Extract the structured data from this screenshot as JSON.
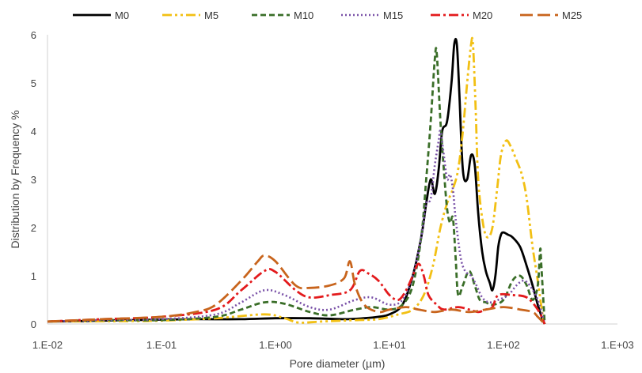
{
  "chart_data": {
    "type": "line",
    "title": "",
    "xlabel": "Pore diameter (µm)",
    "ylabel": "Distribution by Frequency %",
    "x_scale": "log",
    "xlim": [
      0.01,
      1000
    ],
    "ylim": [
      0,
      6
    ],
    "x_ticks": [
      0.01,
      0.1,
      1,
      10,
      100,
      1000
    ],
    "x_tick_labels": [
      "1.E-02",
      "1.E-01",
      "1.E+00",
      "1.E+01",
      "1.E+02",
      "1.E+03"
    ],
    "y_ticks": [
      0,
      1,
      2,
      3,
      4,
      5,
      6
    ],
    "y_tick_labels": [
      "0",
      "1",
      "2",
      "3",
      "4",
      "5",
      "6"
    ],
    "grid": false,
    "legend_position": "top",
    "series": [
      {
        "name": "M0",
        "color": "#000000",
        "dash": "solid",
        "width": 2.8,
        "points": [
          [
            0.01,
            0.05
          ],
          [
            0.02,
            0.06
          ],
          [
            0.05,
            0.08
          ],
          [
            0.1,
            0.09
          ],
          [
            0.2,
            0.1
          ],
          [
            0.5,
            0.1
          ],
          [
            1,
            0.12
          ],
          [
            2,
            0.12
          ],
          [
            4,
            0.1
          ],
          [
            6,
            0.12
          ],
          [
            8,
            0.15
          ],
          [
            10,
            0.2
          ],
          [
            13,
            0.4
          ],
          [
            16,
            1
          ],
          [
            19,
            1.8
          ],
          [
            21,
            2.5
          ],
          [
            23,
            3
          ],
          [
            25,
            2.7
          ],
          [
            27,
            3.2
          ],
          [
            29,
            4
          ],
          [
            32,
            4.2
          ],
          [
            35,
            5
          ],
          [
            37,
            5.8
          ],
          [
            39,
            5.8
          ],
          [
            41,
            4.8
          ],
          [
            44,
            3.2
          ],
          [
            48,
            3
          ],
          [
            52,
            3.5
          ],
          [
            56,
            3.3
          ],
          [
            60,
            2.3
          ],
          [
            65,
            1.5
          ],
          [
            70,
            1.1
          ],
          [
            76,
            0.85
          ],
          [
            80,
            0.7
          ],
          [
            85,
            1
          ],
          [
            90,
            1.6
          ],
          [
            95,
            1.85
          ],
          [
            100,
            1.9
          ],
          [
            110,
            1.85
          ],
          [
            120,
            1.8
          ],
          [
            140,
            1.6
          ],
          [
            160,
            1.2
          ],
          [
            180,
            0.8
          ],
          [
            200,
            0.4
          ],
          [
            220,
            0.1
          ],
          [
            230,
            0
          ]
        ]
      },
      {
        "name": "M5",
        "color": "#f2c014",
        "dash": "dashdotdot",
        "width": 2.8,
        "points": [
          [
            0.01,
            0.05
          ],
          [
            0.05,
            0.06
          ],
          [
            0.1,
            0.07
          ],
          [
            0.3,
            0.12
          ],
          [
            0.8,
            0.2
          ],
          [
            1.2,
            0.12
          ],
          [
            1.6,
            0.03
          ],
          [
            2.5,
            0.05
          ],
          [
            5,
            0.08
          ],
          [
            8,
            0.1
          ],
          [
            12,
            0.2
          ],
          [
            16,
            0.3
          ],
          [
            20,
            0.6
          ],
          [
            24,
            1.2
          ],
          [
            28,
            2
          ],
          [
            32,
            2.5
          ],
          [
            36,
            2.8
          ],
          [
            40,
            3.2
          ],
          [
            44,
            4
          ],
          [
            48,
            5
          ],
          [
            52,
            5.8
          ],
          [
            54,
            5.8
          ],
          [
            57,
            4.5
          ],
          [
            60,
            3
          ],
          [
            66,
            2.1
          ],
          [
            72,
            1.8
          ],
          [
            80,
            2
          ],
          [
            88,
            2.8
          ],
          [
            95,
            3.5
          ],
          [
            105,
            3.8
          ],
          [
            115,
            3.7
          ],
          [
            130,
            3.4
          ],
          [
            145,
            3.1
          ],
          [
            160,
            2.6
          ],
          [
            180,
            1.6
          ],
          [
            200,
            0.9
          ],
          [
            220,
            0.2
          ],
          [
            230,
            0
          ]
        ]
      },
      {
        "name": "M10",
        "color": "#3a6e28",
        "dash": "dash",
        "width": 2.8,
        "points": [
          [
            0.01,
            0.05
          ],
          [
            0.03,
            0.08
          ],
          [
            0.1,
            0.08
          ],
          [
            0.3,
            0.15
          ],
          [
            0.5,
            0.3
          ],
          [
            0.8,
            0.45
          ],
          [
            1.2,
            0.42
          ],
          [
            2,
            0.25
          ],
          [
            3,
            0.18
          ],
          [
            5,
            0.3
          ],
          [
            7,
            0.35
          ],
          [
            10,
            0.3
          ],
          [
            13,
            0.4
          ],
          [
            16,
            0.8
          ],
          [
            19,
            1.8
          ],
          [
            21,
            3
          ],
          [
            23,
            4.2
          ],
          [
            25,
            5.5
          ],
          [
            26,
            5.6
          ],
          [
            28,
            4.2
          ],
          [
            30,
            3.2
          ],
          [
            32,
            2.4
          ],
          [
            34,
            2.1
          ],
          [
            36,
            2.2
          ],
          [
            38,
            1.4
          ],
          [
            40,
            0.6
          ],
          [
            44,
            0.8
          ],
          [
            50,
            1.1
          ],
          [
            56,
            0.8
          ],
          [
            62,
            0.5
          ],
          [
            70,
            0.45
          ],
          [
            80,
            0.4
          ],
          [
            100,
            0.5
          ],
          [
            120,
            0.9
          ],
          [
            140,
            1
          ],
          [
            160,
            0.8
          ],
          [
            180,
            0.5
          ],
          [
            200,
            0.8
          ],
          [
            210,
            1.55
          ],
          [
            215,
            1.2
          ],
          [
            230,
            0
          ]
        ]
      },
      {
        "name": "M15",
        "color": "#7a52a8",
        "dash": "dot",
        "width": 2.6,
        "points": [
          [
            0.01,
            0.05
          ],
          [
            0.03,
            0.08
          ],
          [
            0.1,
            0.1
          ],
          [
            0.3,
            0.2
          ],
          [
            0.5,
            0.45
          ],
          [
            0.8,
            0.7
          ],
          [
            1.2,
            0.6
          ],
          [
            2,
            0.35
          ],
          [
            3,
            0.3
          ],
          [
            5,
            0.5
          ],
          [
            7,
            0.55
          ],
          [
            10,
            0.4
          ],
          [
            13,
            0.5
          ],
          [
            16,
            1
          ],
          [
            19,
            1.8
          ],
          [
            21,
            2.5
          ],
          [
            23,
            2.6
          ],
          [
            25,
            3.3
          ],
          [
            27,
            3.8
          ],
          [
            28,
            4
          ],
          [
            30,
            3.5
          ],
          [
            32,
            3
          ],
          [
            34,
            3.1
          ],
          [
            36,
            2.8
          ],
          [
            38,
            2.2
          ],
          [
            42,
            1.4
          ],
          [
            46,
            1.1
          ],
          [
            52,
            1
          ],
          [
            58,
            0.8
          ],
          [
            65,
            0.55
          ],
          [
            75,
            0.45
          ],
          [
            90,
            0.5
          ],
          [
            110,
            0.6
          ],
          [
            130,
            0.8
          ],
          [
            150,
            0.9
          ],
          [
            170,
            0.8
          ],
          [
            200,
            0.5
          ],
          [
            230,
            0
          ]
        ]
      },
      {
        "name": "M20",
        "color": "#e31a1c",
        "dash": "dashdot",
        "width": 2.8,
        "points": [
          [
            0.01,
            0.05
          ],
          [
            0.03,
            0.1
          ],
          [
            0.1,
            0.15
          ],
          [
            0.3,
            0.3
          ],
          [
            0.5,
            0.7
          ],
          [
            0.8,
            1.1
          ],
          [
            1,
            1.08
          ],
          [
            1.5,
            0.7
          ],
          [
            2,
            0.55
          ],
          [
            3,
            0.6
          ],
          [
            4.5,
            0.7
          ],
          [
            5.5,
            1.1
          ],
          [
            6.5,
            1.05
          ],
          [
            8,
            0.9
          ],
          [
            10,
            0.6
          ],
          [
            12,
            0.5
          ],
          [
            14,
            0.7
          ],
          [
            16,
            1
          ],
          [
            18,
            1.25
          ],
          [
            20,
            1
          ],
          [
            22,
            0.6
          ],
          [
            26,
            0.4
          ],
          [
            30,
            0.3
          ],
          [
            40,
            0.35
          ],
          [
            50,
            0.3
          ],
          [
            60,
            0.25
          ],
          [
            70,
            0.3
          ],
          [
            80,
            0.35
          ],
          [
            90,
            0.6
          ],
          [
            120,
            0.6
          ],
          [
            160,
            0.55
          ],
          [
            200,
            0.3
          ],
          [
            230,
            0
          ]
        ]
      },
      {
        "name": "M25",
        "color": "#c8641c",
        "dash": "longdash",
        "width": 2.8,
        "points": [
          [
            0.01,
            0.05
          ],
          [
            0.03,
            0.1
          ],
          [
            0.1,
            0.15
          ],
          [
            0.2,
            0.25
          ],
          [
            0.3,
            0.4
          ],
          [
            0.5,
            0.9
          ],
          [
            0.7,
            1.3
          ],
          [
            0.8,
            1.42
          ],
          [
            1,
            1.3
          ],
          [
            1.5,
            0.8
          ],
          [
            2,
            0.75
          ],
          [
            3,
            0.8
          ],
          [
            4,
            0.95
          ],
          [
            4.5,
            1.3
          ],
          [
            5,
            0.8
          ],
          [
            6,
            0.4
          ],
          [
            8,
            0.25
          ],
          [
            10,
            0.3
          ],
          [
            14,
            0.35
          ],
          [
            18,
            0.3
          ],
          [
            25,
            0.25
          ],
          [
            35,
            0.3
          ],
          [
            50,
            0.25
          ],
          [
            70,
            0.3
          ],
          [
            100,
            0.35
          ],
          [
            140,
            0.3
          ],
          [
            180,
            0.25
          ],
          [
            200,
            0.15
          ],
          [
            230,
            0
          ]
        ]
      }
    ]
  }
}
